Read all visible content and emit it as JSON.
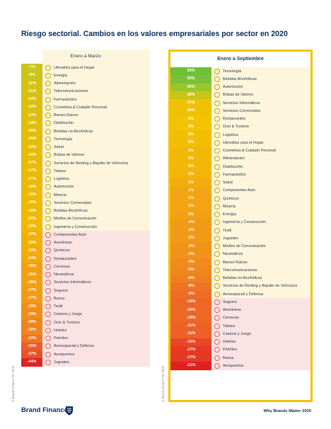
{
  "title": "Riesgo sectorial. Cambios en los valores empresariales por sector en 2020",
  "footer": {
    "brand": "Brand Finance",
    "brand_mark": "®",
    "tagline": "Why Brands Matter 2020",
    "copyright": "© Brand Finance Plc 2020"
  },
  "chart_data": [
    {
      "type": "table",
      "title": "Enero a Marzo",
      "categories": [
        "Utensilios para el Hogar",
        "Energía",
        "Alimentación",
        "Telecomunicaciones",
        "Farmacéutico",
        "Cosmética & Cuidado Personal",
        "Bienes Raíces",
        "Distribución",
        "Bebidas no Alcohólicas",
        "Tecnología",
        "Salud",
        "Bolsas de Valores",
        "Servicios de Renting y Alquiler de Vehículos",
        "Tabaco",
        "Logística",
        "Automoción",
        "Minería",
        "Servicios Comerciales",
        "Bebidas Alcohólicas",
        "Medios de Comunicación",
        "Ingeniería y Construcción",
        "Componentes Auto",
        "Aerolíneas",
        "Químicos",
        "Restaurantes",
        "Cervezas",
        "Neumáticos",
        "Servicios Informáticos",
        "Seguros",
        "Banca",
        "Textil",
        "Casinos y Juego",
        "Ocio & Turismo",
        "Hoteles",
        "Petróleo",
        "Aeroespacial y Defensa",
        "Aeropuertos",
        "Juguetes"
      ],
      "values": [
        -7,
        -8,
        -11,
        -11,
        -12,
        -12,
        -13,
        -14,
        -15,
        -15,
        -16,
        -16,
        -17,
        -17,
        -17,
        -18,
        -19,
        -19,
        -19,
        -20,
        -20,
        -22,
        -22,
        -23,
        -24,
        -26,
        -26,
        -26,
        -27,
        -27,
        -29,
        -29,
        -30,
        -30,
        -32,
        -35,
        -37,
        -44
      ],
      "labels": [
        "-7%",
        "-8%",
        "-11%",
        "-11%",
        "-12%",
        "-12%",
        "-13%",
        "-14%",
        "-15%",
        "-15%",
        "-16%",
        "-16%",
        "-17%",
        "-17%",
        "-17%",
        "-18%",
        "-19%",
        "-19%",
        "-19%",
        "-20%",
        "-20%",
        "-22%",
        "-22%",
        "-23%",
        "-24%",
        "-26%",
        "-26%",
        "-26%",
        "-27%",
        "-27%",
        "-29%",
        "-29%",
        "-30%",
        "-30%",
        "-32%",
        "-35%",
        "-37%",
        "-44%"
      ]
    },
    {
      "type": "table",
      "title": "Enero a Septiembre",
      "categories": [
        "Tecnología",
        "Bebidas Alcohólicas",
        "Automoción",
        "Bolsas de Valores",
        "Servicios Informáticos",
        "Servicios Comerciales",
        "Restaurantes",
        "Ocio & Turismo",
        "Logística",
        "Utensilios para el Hogar",
        "Cosmética & Cuidado Personal",
        "Alimentación",
        "Distribución",
        "Farmacéutico",
        "Salud",
        "Componentes Auto",
        "Químicos",
        "Minería",
        "Energía",
        "Ingeniería y Construcción",
        "Textil",
        "Juguetes",
        "Medios de Comunicación",
        "Neumáticos",
        "Bienes Raíces",
        "Telecomunicaciones",
        "Bebidas no Alcohólicas",
        "Servicios de Renting y Alquiler de Vehículos",
        "Aeroespacial y Defensa",
        "Seguros",
        "Aerolíneas",
        "Cervezas",
        "Tabaco",
        "Casinos y Juego",
        "Hoteles",
        "Petróleo",
        "Banca",
        "Aeropuertos"
      ],
      "values": [
        39,
        36,
        28,
        18,
        10,
        10,
        9,
        9,
        8,
        8,
        6,
        6,
        6,
        5,
        3,
        1,
        1,
        1,
        0,
        -2,
        -2,
        -2,
        -3,
        -3,
        -4,
        -5,
        -6,
        -8,
        -9,
        -10,
        -10,
        -10,
        -11,
        -11,
        -15,
        -17,
        -17,
        -21
      ],
      "labels": [
        "39%",
        "36%",
        "28%",
        "18%",
        "10%",
        "10%",
        "9%",
        "9%",
        "8%",
        "8%",
        "6%",
        "6%",
        "6%",
        "5%",
        "3%",
        "1%",
        "1%",
        "1%",
        "0%",
        "-2%",
        "-2%",
        "-2%",
        "-3%",
        "-3%",
        "-4%",
        "-5%",
        "-6%",
        "-8%",
        "-9%",
        "-10%",
        "-10%",
        "-10%",
        "-11%",
        "-11%",
        "-15%",
        "-17%",
        "-17%",
        "-21%"
      ]
    }
  ]
}
